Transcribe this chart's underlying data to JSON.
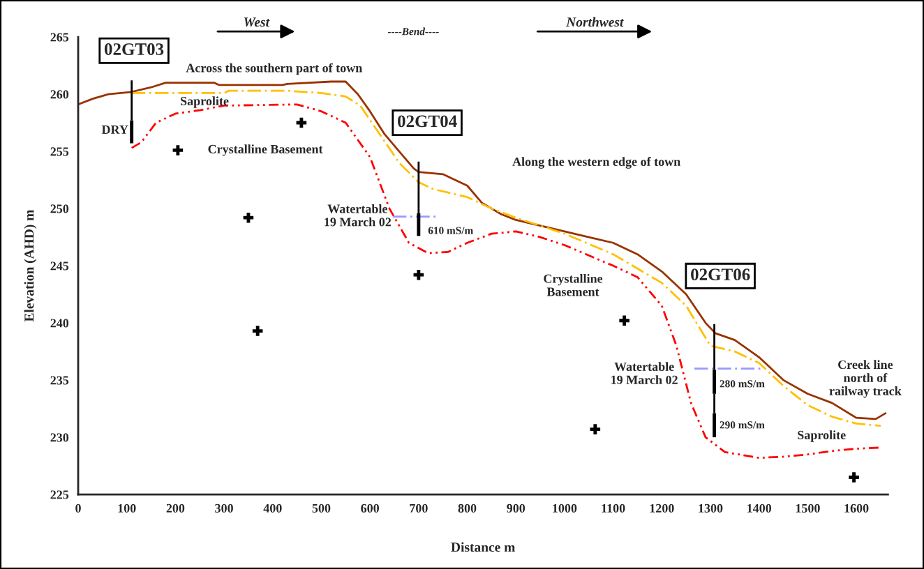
{
  "chart_data": {
    "type": "line",
    "xlabel": "Distance m",
    "ylabel": "Elevation (AHD) m",
    "xlim": [
      0,
      1665
    ],
    "ylim": [
      225,
      265
    ],
    "xticks": [
      0,
      100,
      200,
      300,
      400,
      500,
      600,
      700,
      800,
      900,
      1000,
      1100,
      1200,
      1300,
      1400,
      1500,
      1600
    ],
    "yticks": [
      225,
      230,
      235,
      240,
      245,
      250,
      255,
      260,
      265
    ],
    "grid": false,
    "legend": false,
    "series": [
      {
        "color": "#993300",
        "line_style": "solid",
        "x": [
          0,
          30,
          62,
          110,
          150,
          180,
          280,
          290,
          420,
          430,
          520,
          550,
          575,
          600,
          630,
          660,
          690,
          700,
          750,
          800,
          830,
          870,
          900,
          950,
          1000,
          1050,
          1100,
          1150,
          1200,
          1250,
          1290,
          1310,
          1350,
          1400,
          1450,
          1500,
          1550,
          1600,
          1640,
          1660
        ],
        "values": [
          259.1,
          259.6,
          260.0,
          260.2,
          260.6,
          261.0,
          261.0,
          260.8,
          260.8,
          260.9,
          261.1,
          261.1,
          260.0,
          258.5,
          256.5,
          255.0,
          253.5,
          253.2,
          253.0,
          252.0,
          250.5,
          249.5,
          249.0,
          248.5,
          248.0,
          247.5,
          247.0,
          246.0,
          244.5,
          242.5,
          240.0,
          239.1,
          238.5,
          237.0,
          235.0,
          233.8,
          233.0,
          231.7,
          231.6,
          232.1
        ]
      },
      {
        "color": "#ffc000",
        "line_style": "dashed",
        "x": [
          110,
          300,
          310,
          430,
          500,
          550,
          580,
          620,
          660,
          700,
          730,
          800,
          850,
          900,
          1000,
          1100,
          1200,
          1250,
          1300,
          1350,
          1400,
          1450,
          1500,
          1550,
          1600,
          1650
        ],
        "values": [
          260.1,
          260.1,
          260.3,
          260.3,
          260.1,
          259.8,
          259.0,
          256.5,
          254.0,
          252.3,
          251.7,
          251.0,
          250.0,
          249.2,
          247.8,
          246.0,
          243.5,
          241.5,
          238.0,
          237.5,
          236.5,
          234.5,
          232.8,
          231.8,
          231.2,
          231.0
        ]
      },
      {
        "color": "#ff0000",
        "line_style": "dotted",
        "x": [
          110,
          130,
          160,
          200,
          250,
          300,
          450,
          500,
          550,
          600,
          640,
          680,
          720,
          760,
          800,
          850,
          900,
          950,
          1000,
          1100,
          1150,
          1200,
          1230,
          1260,
          1290,
          1330,
          1400,
          1450,
          1500,
          1550,
          1600,
          1650
        ],
        "values": [
          255.3,
          255.8,
          257.5,
          258.3,
          258.6,
          259.0,
          259.1,
          258.5,
          257.5,
          254.5,
          250.0,
          247.0,
          246.1,
          246.2,
          247.0,
          247.8,
          248.0,
          247.5,
          246.8,
          245.0,
          244.0,
          241.5,
          238.0,
          233.0,
          230.0,
          228.7,
          228.2,
          228.3,
          228.5,
          228.8,
          229.0,
          229.1
        ]
      },
      {
        "color": "#9999ff",
        "line_style": "dashed",
        "x": [
          647,
          736
        ],
        "values": [
          249.3,
          249.3
        ]
      },
      {
        "color": "#9999ff",
        "line_style": "dashed",
        "x": [
          1267,
          1403
        ],
        "values": [
          236.0,
          236.0
        ]
      },
      {
        "type": "bar",
        "color": "#000000",
        "x": [
          110,
          700,
          1308
        ],
        "base": [
          255.7,
          247.6,
          233.8
        ],
        "values": [
          2.0,
          2.0,
          2.1
        ],
        "errors": [
          [
            257.7,
            261.2
          ],
          [
            249.6,
            254.1
          ],
          [
            235.9,
            239.9
          ]
        ]
      },
      {
        "type": "bar",
        "color": "#000000",
        "x": [
          1308
        ],
        "base": [
          230.0
        ],
        "values": [
          2.1
        ],
        "errors": [
          [
            232.1,
            233.8
          ]
        ]
      },
      {
        "type": "scatter",
        "color": "#000000",
        "marker": "cross",
        "x": [
          205,
          350,
          369,
          459,
          700,
          1063,
          1123,
          1595
        ],
        "values": [
          255.1,
          249.2,
          239.3,
          257.5,
          244.2,
          230.7,
          240.2,
          226.5
        ]
      }
    ],
    "annotations": [
      "02GT03",
      "02GT04",
      "02GT06",
      "West",
      "Northwest",
      "----Bend----",
      "Across the southern part of town",
      "Saprolite",
      "DRY",
      "Crystalline Basement",
      "Along the western edge of town",
      "Watertable\n19 March 02",
      "610 mS/m",
      "Crystalline\nBasement",
      "Watertable\n19 March 02",
      "280 mS/m",
      "290 mS/m",
      "Creek line\nnorth of\nrailway track",
      "Saprolite"
    ]
  }
}
